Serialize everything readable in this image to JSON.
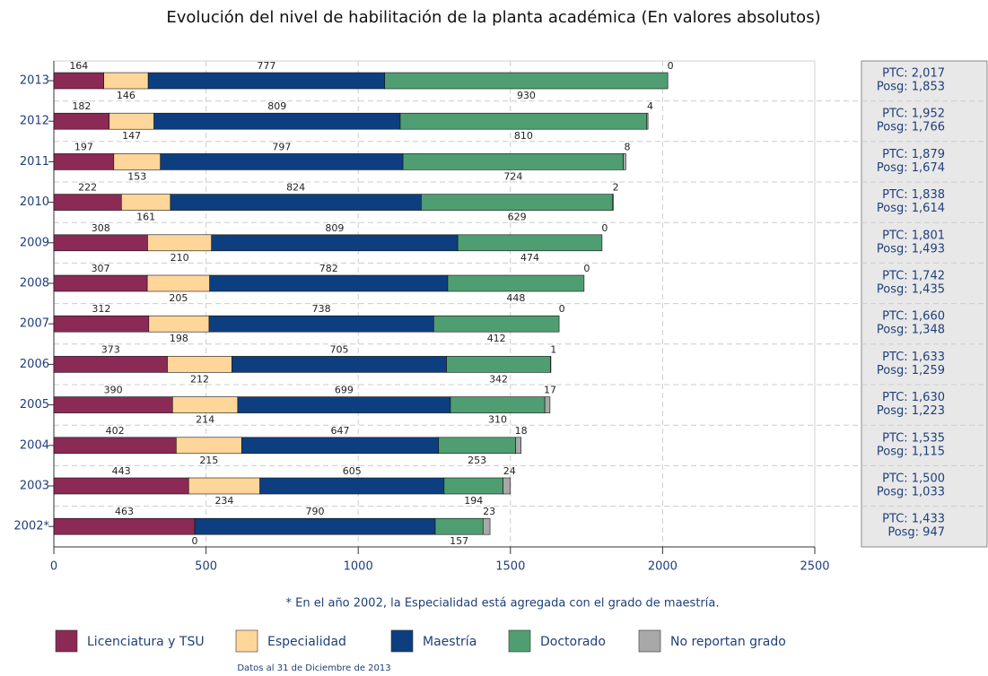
{
  "chart_data": {
    "type": "stacked-barh",
    "title": "Evolución del nivel de habilitación de la planta académica (En valores absolutos)",
    "categories": [
      "2013",
      "2012",
      "2011",
      "2010",
      "2009",
      "2008",
      "2007",
      "2006",
      "2005",
      "2004",
      "2003",
      "2002*"
    ],
    "series": [
      {
        "name": "Licenciatura y TSU",
        "color": "#8b2a55",
        "values": [
          164,
          182,
          197,
          222,
          308,
          307,
          312,
          373,
          390,
          402,
          443,
          463
        ]
      },
      {
        "name": "Especialidad",
        "color": "#ffd699",
        "values": [
          146,
          147,
          153,
          161,
          210,
          205,
          198,
          212,
          214,
          215,
          234,
          0
        ]
      },
      {
        "name": "Maestría",
        "color": "#0d3f80",
        "values": [
          777,
          809,
          797,
          824,
          809,
          782,
          738,
          705,
          699,
          647,
          605,
          790
        ]
      },
      {
        "name": "Doctorado",
        "color": "#4f9e72",
        "values": [
          930,
          810,
          724,
          629,
          474,
          448,
          412,
          342,
          310,
          253,
          194,
          157
        ]
      },
      {
        "name": "No reportan grado",
        "color": "#a8a8a8",
        "values": [
          0,
          4,
          8,
          2,
          0,
          0,
          0,
          1,
          17,
          18,
          24,
          23
        ]
      }
    ],
    "xlim": [
      0,
      2500
    ],
    "xticks": [
      0,
      500,
      1000,
      1500,
      2000,
      2500
    ],
    "grid": true,
    "side_labels": [
      [
        "PTC: 2,017",
        "Posg: 1,853"
      ],
      [
        "PTC: 1,952",
        "Posg: 1,766"
      ],
      [
        "PTC: 1,879",
        "Posg: 1,674"
      ],
      [
        "PTC: 1,838",
        "Posg: 1,614"
      ],
      [
        "PTC: 1,801",
        "Posg: 1,493"
      ],
      [
        "PTC: 1,742",
        "Posg: 1,435"
      ],
      [
        "PTC: 1,660",
        "Posg: 1,348"
      ],
      [
        "PTC: 1,633",
        "Posg: 1,259"
      ],
      [
        "PTC: 1,630",
        "Posg: 1,223"
      ],
      [
        "PTC: 1,535",
        "Posg: 1,115"
      ],
      [
        "PTC: 1,500",
        "Posg: 1,033"
      ],
      [
        "PTC: 1,433",
        "Posg: 947"
      ]
    ],
    "footnote": "* En el año 2002, la Especialidad está agregada con el grado de maestría.",
    "source": "Datos al 31 de Diciembre de 2013"
  }
}
